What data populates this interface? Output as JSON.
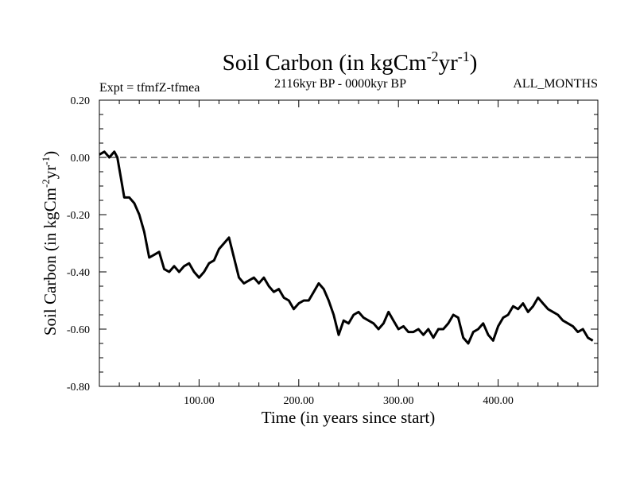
{
  "chart_data": {
    "type": "line",
    "title_main": "Soil Carbon (in kgCm",
    "title_sup1": "-2",
    "title_mid": "yr",
    "title_sup2": "-1",
    "title_end": ")",
    "subtitle_left": "Expt = tfmfZ-tfmea",
    "subtitle_center": "2116kyr BP - 0000kyr BP",
    "subtitle_right": "ALL_MONTHS",
    "xlabel": "Time (in years since start)",
    "ylabel_main": "Soil Carbon (in kgCm",
    "ylabel_sup1": "-2",
    "ylabel_mid": "yr",
    "ylabel_sup2": "-1",
    "ylabel_end": ")",
    "xlim": [
      0,
      500
    ],
    "ylim": [
      -0.8,
      0.2
    ],
    "x_ticks": [
      100,
      200,
      300,
      400
    ],
    "x_tick_labels": [
      "100.00",
      "200.00",
      "300.00",
      "400.00"
    ],
    "y_ticks": [
      0.2,
      0.0,
      -0.2,
      -0.4,
      -0.6,
      -0.8
    ],
    "y_tick_labels": [
      "0.20",
      "0.00",
      "-0.20",
      "-0.40",
      "-0.60",
      "-0.80"
    ],
    "reference_line": 0.0,
    "series": [
      {
        "name": "soil-carbon",
        "x": [
          0,
          5,
          10,
          15,
          18,
          22,
          25,
          30,
          35,
          40,
          45,
          50,
          55,
          60,
          65,
          70,
          75,
          80,
          85,
          90,
          95,
          100,
          105,
          110,
          115,
          120,
          125,
          130,
          135,
          140,
          145,
          150,
          155,
          160,
          165,
          170,
          175,
          180,
          185,
          190,
          195,
          200,
          205,
          210,
          215,
          220,
          225,
          230,
          235,
          240,
          245,
          250,
          255,
          260,
          265,
          270,
          275,
          280,
          285,
          290,
          295,
          300,
          305,
          310,
          315,
          320,
          325,
          330,
          335,
          340,
          345,
          350,
          355,
          360,
          365,
          370,
          375,
          380,
          385,
          390,
          395,
          400,
          405,
          410,
          415,
          420,
          425,
          430,
          435,
          440,
          445,
          450,
          455,
          460,
          465,
          470,
          475,
          480,
          485,
          490,
          495
        ],
        "values": [
          0.01,
          0.02,
          0.0,
          0.02,
          0.0,
          -0.08,
          -0.14,
          -0.14,
          -0.16,
          -0.2,
          -0.26,
          -0.35,
          -0.34,
          -0.33,
          -0.39,
          -0.4,
          -0.38,
          -0.4,
          -0.38,
          -0.37,
          -0.4,
          -0.42,
          -0.4,
          -0.37,
          -0.36,
          -0.32,
          -0.3,
          -0.28,
          -0.35,
          -0.42,
          -0.44,
          -0.43,
          -0.42,
          -0.44,
          -0.42,
          -0.45,
          -0.47,
          -0.46,
          -0.49,
          -0.5,
          -0.53,
          -0.51,
          -0.5,
          -0.5,
          -0.47,
          -0.44,
          -0.46,
          -0.5,
          -0.55,
          -0.62,
          -0.57,
          -0.58,
          -0.55,
          -0.54,
          -0.56,
          -0.57,
          -0.58,
          -0.6,
          -0.58,
          -0.54,
          -0.57,
          -0.6,
          -0.59,
          -0.61,
          -0.61,
          -0.6,
          -0.62,
          -0.6,
          -0.63,
          -0.6,
          -0.6,
          -0.58,
          -0.55,
          -0.56,
          -0.63,
          -0.65,
          -0.61,
          -0.6,
          -0.58,
          -0.62,
          -0.64,
          -0.59,
          -0.56,
          -0.55,
          -0.52,
          -0.53,
          -0.51,
          -0.54,
          -0.52,
          -0.49,
          -0.51,
          -0.53,
          -0.54,
          -0.55,
          -0.57,
          -0.58,
          -0.59,
          -0.61,
          -0.6,
          -0.63,
          -0.64
        ]
      }
    ]
  }
}
